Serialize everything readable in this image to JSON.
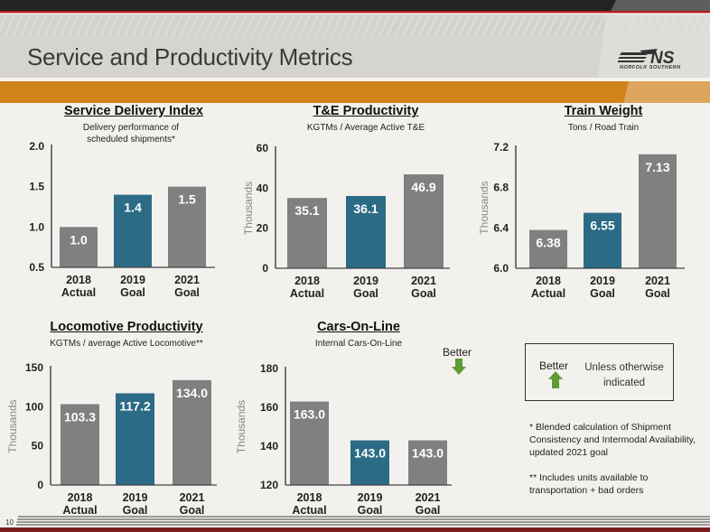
{
  "header": {
    "title": "Service and Productivity Metrics",
    "logo_text": "NORFOLK SOUTHERN",
    "logo_mark": "NS"
  },
  "colors": {
    "bar_gray": "#808080",
    "bar_blue": "#2b6b85",
    "orange_band": "#cf8318",
    "arrow_green": "#5f9b35"
  },
  "chart_data": [
    {
      "type": "bar",
      "title": "Service Delivery Index",
      "subtitle": "Delivery performance of scheduled shipments*",
      "ylabel": "",
      "ylim": [
        0.5,
        2.0
      ],
      "yticks": [
        "0.5",
        "1.0",
        "1.5",
        "2.0"
      ],
      "ytick_values": [
        0.5,
        1.0,
        1.5,
        2.0
      ],
      "categories": [
        "2018 Actual",
        "2019 Goal",
        "2021 Goal"
      ],
      "category_lines": [
        [
          "2018",
          "Actual"
        ],
        [
          "2019",
          "Goal"
        ],
        [
          "2021",
          "Goal"
        ]
      ],
      "values": [
        1.0,
        1.4,
        1.5
      ],
      "labels": [
        "1.0",
        "1.4",
        "1.5"
      ],
      "highlight_index": 1,
      "grid": false
    },
    {
      "type": "bar",
      "title": "T&E Productivity",
      "subtitle": "KGTMs / Average Active T&E",
      "ylabel": "Thousands",
      "ylim": [
        0,
        60
      ],
      "yticks": [
        "0",
        "20",
        "40",
        "60"
      ],
      "ytick_values": [
        0,
        20,
        40,
        60
      ],
      "categories": [
        "2018 Actual",
        "2019 Goal",
        "2021 Goal"
      ],
      "category_lines": [
        [
          "2018",
          "Actual"
        ],
        [
          "2019",
          "Goal"
        ],
        [
          "2021",
          "Goal"
        ]
      ],
      "values": [
        35.1,
        36.1,
        46.9
      ],
      "labels": [
        "35.1",
        "36.1",
        "46.9"
      ],
      "highlight_index": 1,
      "grid": false
    },
    {
      "type": "bar",
      "title": "Train Weight",
      "subtitle": "Tons / Road Train",
      "ylabel": "Thousands",
      "ylim": [
        6.0,
        7.2
      ],
      "yticks": [
        "6.0",
        "6.4",
        "6.8",
        "7.2"
      ],
      "ytick_values": [
        6.0,
        6.4,
        6.8,
        7.2
      ],
      "categories": [
        "2018 Actual",
        "2019 Goal",
        "2021 Goal"
      ],
      "category_lines": [
        [
          "2018",
          "Actual"
        ],
        [
          "2019",
          "Goal"
        ],
        [
          "2021",
          "Goal"
        ]
      ],
      "values": [
        6.38,
        6.55,
        7.13
      ],
      "labels": [
        "6.38",
        "6.55",
        "7.13"
      ],
      "highlight_index": 1,
      "grid": false
    },
    {
      "type": "bar",
      "title": "Locomotive Productivity",
      "subtitle": "KGTMs / average Active Locomotive**",
      "ylabel": "Thousands",
      "ylim": [
        0,
        150
      ],
      "yticks": [
        "0",
        "50",
        "100",
        "150"
      ],
      "ytick_values": [
        0,
        50,
        100,
        150
      ],
      "categories": [
        "2018 Actual",
        "2019 Goal",
        "2021 Goal"
      ],
      "category_lines": [
        [
          "2018",
          "Actual"
        ],
        [
          "2019",
          "Goal"
        ],
        [
          "2021",
          "Goal"
        ]
      ],
      "values": [
        103.3,
        117.2,
        134.0
      ],
      "labels": [
        "103.3",
        "117.2",
        "134.0"
      ],
      "highlight_index": 1,
      "grid": false
    },
    {
      "type": "bar",
      "title": "Cars-On-Line",
      "subtitle": "Internal Cars-On-Line",
      "ylabel": "Thousands",
      "ylim": [
        120,
        180
      ],
      "yticks": [
        "120",
        "140",
        "160",
        "180"
      ],
      "ytick_values": [
        120,
        140,
        160,
        180
      ],
      "categories": [
        "2018 Actual",
        "2019 Goal",
        "2021 Goal"
      ],
      "category_lines": [
        [
          "2018",
          "Actual"
        ],
        [
          "2019",
          "Goal"
        ],
        [
          "2021",
          "Goal"
        ]
      ],
      "values": [
        163.0,
        143.0,
        143.0
      ],
      "labels": [
        "163.0",
        "143.0",
        "143.0"
      ],
      "highlight_index": 1,
      "grid": false,
      "annotation": "Better (lower is better)"
    }
  ],
  "cars_better": {
    "label": "Better",
    "direction": "down-arrow-icon"
  },
  "legend": {
    "better_label": "Better",
    "better_direction": "up-arrow-icon",
    "text": "Unless otherwise indicated"
  },
  "footnotes": [
    "* Blended calculation of Shipment Consistency and Intermodal Availability, updated 2021 goal",
    "** Includes units available to transportation + bad orders"
  ],
  "page_number": "10"
}
